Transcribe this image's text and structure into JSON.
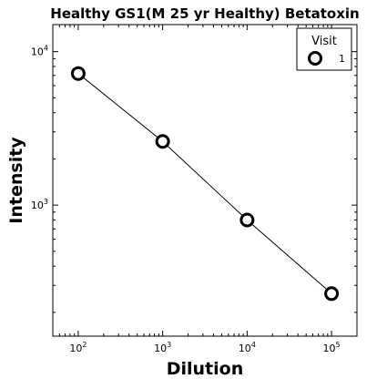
{
  "chart_data": {
    "type": "line",
    "title": "Healthy GS1(M 25 yr Healthy) Betatoxin",
    "xlabel": "Dilution",
    "ylabel": "Intensity",
    "xscale": "log",
    "yscale": "log",
    "xlim": [
      50,
      200000
    ],
    "ylim": [
      140,
      15000
    ],
    "x_ticks": [
      {
        "value": 100,
        "base": "10",
        "exp": "2"
      },
      {
        "value": 1000,
        "base": "10",
        "exp": "3"
      },
      {
        "value": 10000,
        "base": "10",
        "exp": "4"
      },
      {
        "value": 100000,
        "base": "10",
        "exp": "5"
      }
    ],
    "y_ticks": [
      {
        "value": 1000,
        "base": "10",
        "exp": "3"
      },
      {
        "value": 10000,
        "base": "10",
        "exp": "4"
      }
    ],
    "legend": {
      "title": "Visit",
      "position": "top-right"
    },
    "series": [
      {
        "name": "1",
        "marker": "hollow-circle",
        "line_color": "#000000",
        "marker_color": "#000000",
        "x": [
          100,
          1000,
          10000,
          100000
        ],
        "y": [
          7200,
          2600,
          800,
          265
        ]
      }
    ]
  }
}
